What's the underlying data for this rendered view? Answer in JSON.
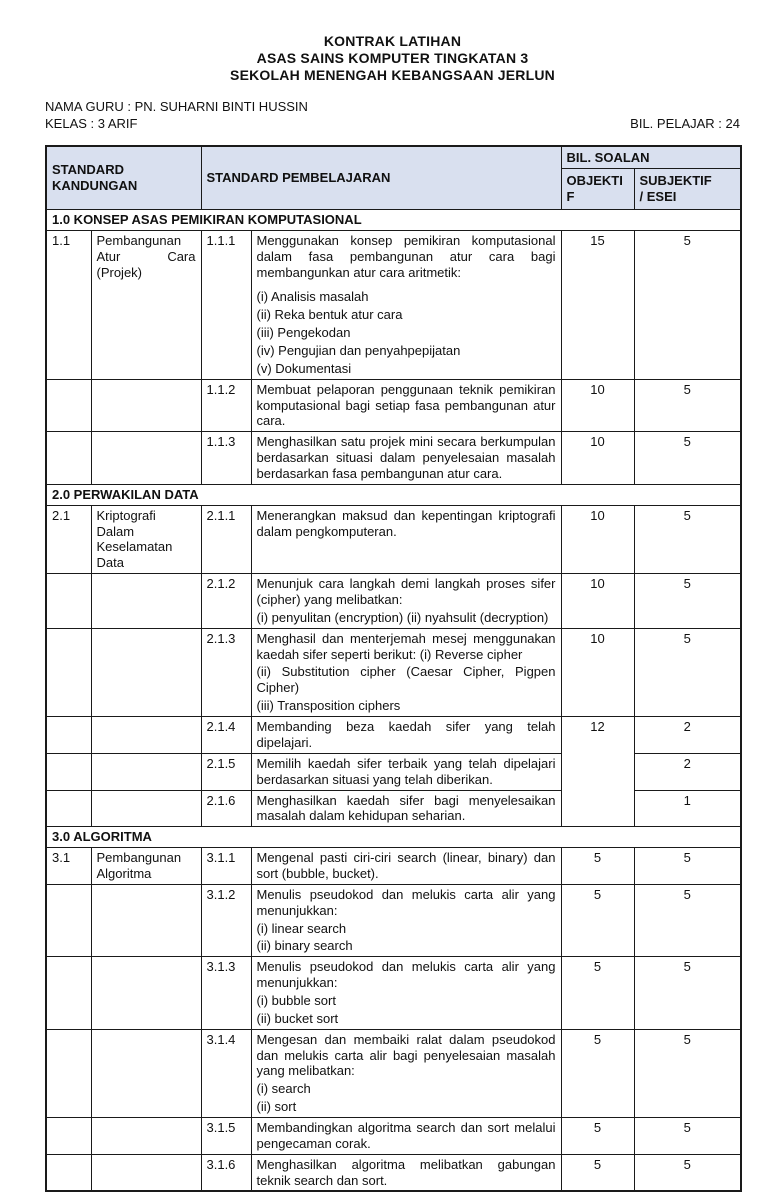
{
  "colors": {
    "header_bg": "#d9e0ef",
    "border": "#1a1a1a",
    "page_bg": "#ffffff"
  },
  "page": {
    "title_lines": [
      "KONTRAK LATIHAN",
      "ASAS SAINS KOMPUTER TINGKATAN 3",
      "SEKOLAH MENENGAH KEBANGSAAN JERLUN"
    ],
    "teacher_label": "NAMA GURU : PN. SUHARNI BINTI HUSSIN",
    "class_label": "KELAS : 3 ARIF",
    "students_label": "BIL. PELAJAR : 24"
  },
  "table": {
    "headers": {
      "standard_kandungan": "STANDARD KANDUNGAN",
      "standard_pembelajaran": "STANDARD PEMBELAJARAN",
      "bil_soalan": "BIL. SOALAN",
      "objektif": "OBJEKTIF",
      "subjektif_line1": "SUBJEKTIF",
      "subjektif_line2": "/ ESEI"
    },
    "sections": [
      {
        "title": "1.0 KONSEP ASAS PEMIKIRAN KOMPUTASIONAL",
        "rows": [
          {
            "sk_no": "1.1",
            "sk_text": "Pembangunan Atur Cara (Projek)",
            "sp_no": "1.1.1",
            "sp_lines": [
              "Menggunakan konsep pemikiran komputasional dalam fasa pembangunan atur cara bagi membangunkan atur cara aritmetik:",
              "",
              "(i) Analisis masalah",
              "(ii) Reka bentuk atur cara",
              "(iii) Pengekodan",
              "(iv) Pengujian dan penyahpepijatan",
              "(v) Dokumentasi"
            ],
            "objektif": "15",
            "subjektif": "5"
          },
          {
            "sk_no": "",
            "sk_text": "",
            "sp_no": "1.1.2",
            "sp_lines": [
              "Membuat pelaporan penggunaan teknik pemikiran komputasional bagi setiap fasa pembangunan atur cara."
            ],
            "objektif": "10",
            "subjektif": "5"
          },
          {
            "sk_no": "",
            "sk_text": "",
            "sp_no": "1.1.3",
            "sp_lines": [
              "Menghasilkan satu projek mini secara berkumpulan berdasarkan situasi dalam penyelesaian masalah berdasarkan fasa pembangunan atur cara."
            ],
            "objektif": "10",
            "subjektif": "5"
          }
        ]
      },
      {
        "title": "2.0 PERWAKILAN DATA",
        "rows": [
          {
            "sk_no": "2.1",
            "sk_text": "Kriptografi Dalam Keselamatan Data",
            "sp_no": "2.1.1",
            "sp_lines": [
              "Menerangkan maksud dan kepentingan kriptografi dalam pengkomputeran."
            ],
            "objektif": "10",
            "subjektif": "5"
          },
          {
            "sk_no": "",
            "sk_text": "",
            "sp_no": "2.1.2",
            "sp_lines": [
              "Menunjuk cara langkah demi langkah proses sifer (cipher) yang melibatkan:",
              "(i) penyulitan (encryption) (ii) nyahsulit (decryption)"
            ],
            "objektif": "10",
            "subjektif": "5"
          },
          {
            "sk_no": "",
            "sk_text": "",
            "sp_no": "2.1.3",
            "sp_lines": [
              "Menghasil dan menterjemah mesej menggunakan kaedah sifer seperti berikut: (i) Reverse cipher",
              "(ii) Substitution cipher (Caesar Cipher, Pigpen Cipher)",
              "(iii) Transposition ciphers"
            ],
            "objektif": "10",
            "subjektif": "5"
          },
          {
            "sk_no": "",
            "sk_text": "",
            "sp_no": "2.1.4",
            "sp_lines": [
              "Membanding beza kaedah sifer yang telah dipelajari."
            ],
            "objektif": {
              "value": "12",
              "rowspan": 3
            },
            "subjektif": "2"
          },
          {
            "sk_no": "",
            "sk_text": "",
            "sp_no": "2.1.5",
            "sp_lines": [
              "Memilih kaedah sifer terbaik yang telah dipelajari berdasarkan situasi yang telah diberikan."
            ],
            "objektif": null,
            "subjektif": "2"
          },
          {
            "sk_no": "",
            "sk_text": "",
            "sp_no": "2.1.6",
            "sp_lines": [
              "Menghasilkan kaedah sifer bagi menyelesaikan masalah dalam kehidupan seharian."
            ],
            "objektif": null,
            "subjektif": "1"
          }
        ]
      },
      {
        "title": "3.0 ALGORITMA",
        "rows": [
          {
            "sk_no": "3.1",
            "sk_text": "Pembangunan Algoritma",
            "sp_no": "3.1.1",
            "sp_lines": [
              "Mengenal pasti ciri-ciri search (linear, binary) dan sort (bubble, bucket)."
            ],
            "objektif": "5",
            "subjektif": "5"
          },
          {
            "sk_no": "",
            "sk_text": "",
            "sp_no": "3.1.2",
            "sp_lines": [
              "Menulis pseudokod dan melukis carta alir yang menunjukkan:",
              "(i) linear search",
              "(ii) binary search"
            ],
            "objektif": "5",
            "subjektif": "5"
          },
          {
            "sk_no": "",
            "sk_text": "",
            "sp_no": "3.1.3",
            "sp_lines": [
              "Menulis pseudokod dan melukis carta alir yang menunjukkan:",
              "(i) bubble sort",
              "(ii) bucket sort"
            ],
            "objektif": "5",
            "subjektif": "5"
          },
          {
            "sk_no": "",
            "sk_text": "",
            "sp_no": "3.1.4",
            "sp_lines": [
              "Mengesan dan membaiki ralat dalam pseudokod dan melukis carta alir bagi penyelesaian masalah yang melibatkan:",
              "(i) search",
              "(ii) sort"
            ],
            "objektif": "5",
            "subjektif": "5"
          },
          {
            "sk_no": "",
            "sk_text": "",
            "sp_no": "3.1.5",
            "sp_lines": [
              "Membandingkan algoritma search dan sort melalui pengecaman corak."
            ],
            "objektif": "5",
            "subjektif": "5"
          },
          {
            "sk_no": "",
            "sk_text": "",
            "sp_no": "3.1.6",
            "sp_lines": [
              "Menghasilkan algoritma melibatkan gabungan teknik search dan sort."
            ],
            "objektif": "5",
            "subjektif": "5"
          }
        ]
      }
    ]
  }
}
